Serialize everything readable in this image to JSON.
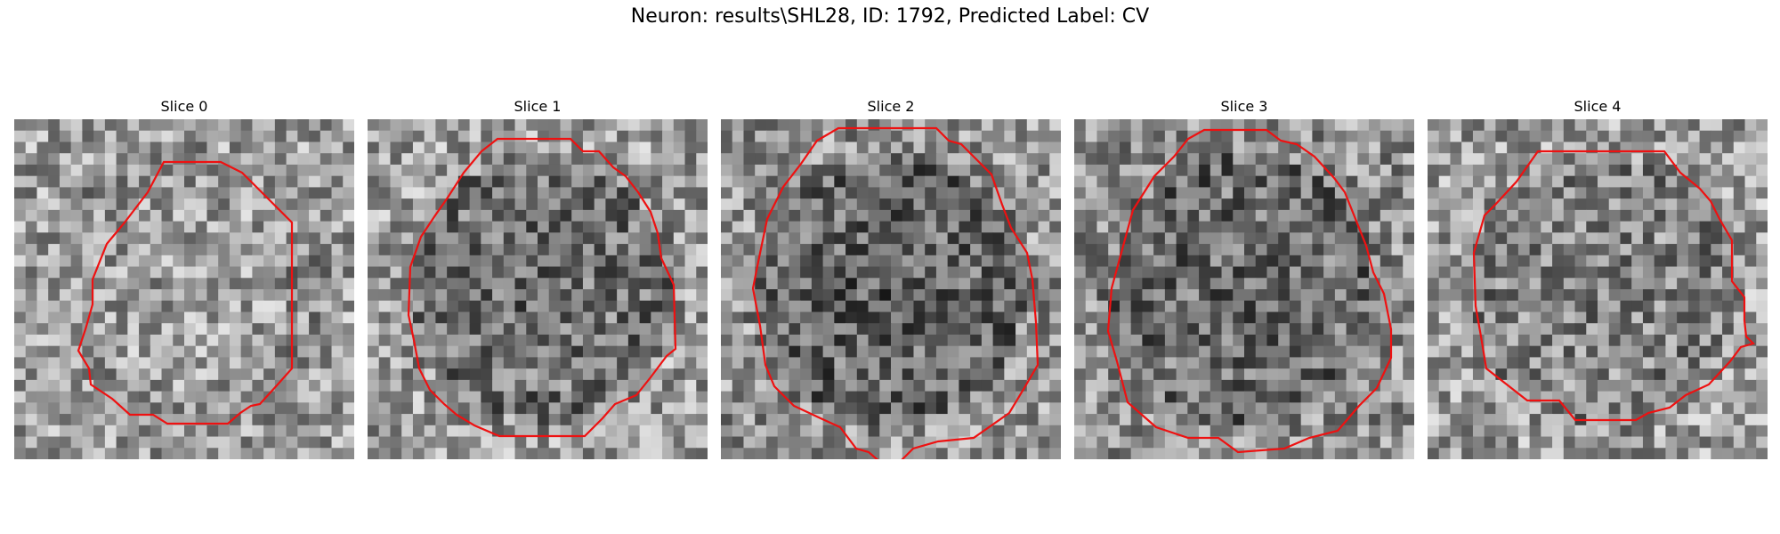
{
  "title": "Neuron: results\\SHL28, ID: 1792, Predicted Label: CV",
  "panels": [
    {
      "label": "Slice 0",
      "seed": 11,
      "base": 0.62,
      "center_dark": 0.0
    },
    {
      "label": "Slice 1",
      "seed": 23,
      "base": 0.62,
      "center_dark": 0.22
    },
    {
      "label": "Slice 2",
      "seed": 37,
      "base": 0.58,
      "center_dark": 0.24
    },
    {
      "label": "Slice 3",
      "seed": 51,
      "base": 0.56,
      "center_dark": 0.18
    },
    {
      "label": "Slice 4",
      "seed": 67,
      "base": 0.62,
      "center_dark": 0.12
    }
  ],
  "contour_color": "#ee1111",
  "grid_cells": 30
}
